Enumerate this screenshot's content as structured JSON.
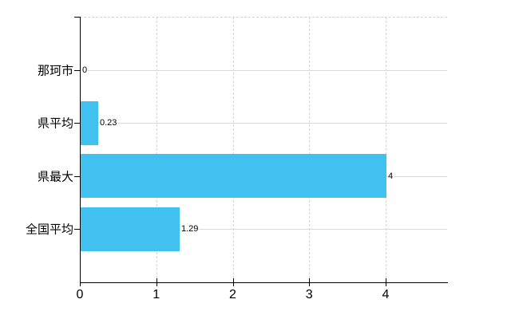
{
  "chart_data": {
    "type": "bar",
    "orientation": "horizontal",
    "title": "",
    "categories": [
      "那珂市",
      "県平均",
      "県最大",
      "全国平均"
    ],
    "values": [
      0,
      0.23,
      4,
      1.29
    ],
    "value_labels": [
      "0",
      "0.23",
      "4",
      "1.29"
    ],
    "x_ticks": [
      "0",
      "1",
      "2",
      "3",
      "4"
    ],
    "xlim": [
      0,
      4.8
    ],
    "grid": true,
    "legend_position": "none",
    "bar_color": "#40C1F0",
    "axis_color": "#000000",
    "gridline_color": "#dadada",
    "dashed_gridline_color": "#d4d4d4",
    "text_color": "#000000",
    "background_color": "#ffffff"
  }
}
